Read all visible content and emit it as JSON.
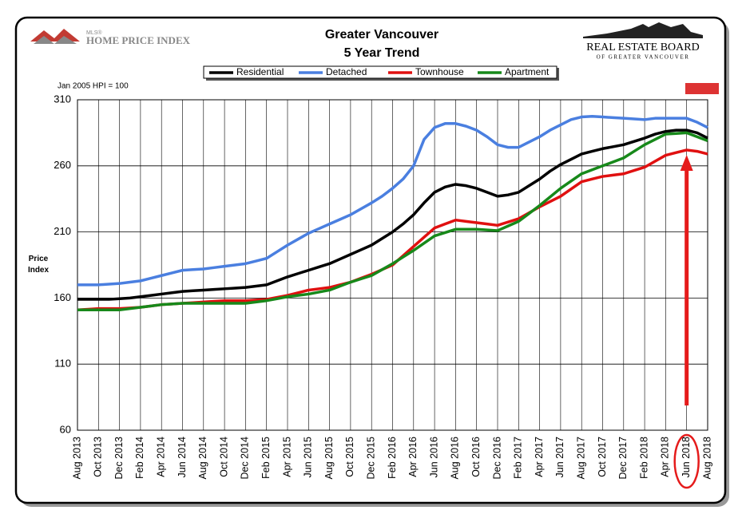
{
  "logos": {
    "mls": "MLS®",
    "hpi": "HOME PRICE INDEX",
    "board": "REAL ESTATE BOARD",
    "board_sub": "OF GREATER VANCOUVER"
  },
  "chart_data": {
    "type": "line",
    "title": "Greater Vancouver",
    "subtitle": "5 Year Trend",
    "note": "Jan 2005 HPI = 100",
    "y_label": "Price Index",
    "categories": [
      "Aug 2013",
      null,
      "Oct 2013",
      null,
      "Dec 2013",
      null,
      "Feb 2014",
      null,
      "Apr 2014",
      null,
      "Jun 2014",
      null,
      "Aug 2014",
      null,
      "Oct 2014",
      null,
      "Dec 2014",
      null,
      "Feb 2015",
      null,
      "Apr 2015",
      null,
      "Jun 2015",
      null,
      "Aug 2015",
      null,
      "Oct 2015",
      null,
      "Dec 2015",
      null,
      "Feb 2016",
      null,
      "Apr 2016",
      null,
      "Jun 2016",
      null,
      "Aug 2016",
      null,
      "Oct 2016",
      null,
      "Dec 2016",
      null,
      "Feb 2017",
      null,
      "Apr 2017",
      null,
      "Jun 2017",
      null,
      "Aug 2017",
      null,
      "Oct 2017",
      null,
      "Dec 2017",
      null,
      "Feb 2018",
      null,
      "Apr 2018",
      null,
      "Jun 2018",
      null,
      "Aug 2018"
    ],
    "series": [
      {
        "name": "Residential",
        "color": "#000000",
        "values": [
          159,
          159,
          159,
          159,
          159.5,
          160,
          161,
          162,
          163,
          164,
          165,
          165.5,
          166,
          166.5,
          167,
          167.5,
          168,
          169,
          170,
          173,
          176,
          178.5,
          181,
          183.5,
          186,
          189.5,
          193,
          196.5,
          200,
          205,
          210,
          216,
          223,
          232,
          240,
          244,
          246,
          245,
          243,
          240,
          237,
          238,
          240,
          245,
          250,
          256,
          261,
          265,
          269,
          271,
          273,
          274.5,
          276,
          278.5,
          281,
          284,
          286,
          287,
          287,
          285,
          281
        ]
      },
      {
        "name": "Detached",
        "color": "#4a7fe0",
        "values": [
          170,
          170,
          170,
          170.5,
          171,
          172,
          173,
          175,
          177,
          179,
          181,
          181.5,
          182,
          183,
          184,
          185,
          186,
          188,
          190,
          195,
          200,
          204.5,
          209,
          212.5,
          216,
          219.5,
          223,
          227.5,
          232,
          237,
          243,
          250,
          260,
          280,
          289,
          292,
          292,
          290,
          287,
          282,
          276,
          274,
          274,
          278,
          282,
          287,
          291,
          295,
          297,
          297.5,
          297,
          296.5,
          296,
          295.5,
          295,
          296,
          296,
          296,
          296,
          293,
          289
        ]
      },
      {
        "name": "Townhouse",
        "color": "#e01010",
        "values": [
          151,
          151.5,
          152,
          152,
          152,
          152.5,
          153,
          154,
          155,
          155.5,
          156,
          156.5,
          157,
          157.5,
          158,
          158,
          158,
          158.5,
          159,
          160.5,
          162,
          164,
          166,
          167,
          168,
          170,
          172,
          175,
          178,
          181.5,
          185,
          192,
          199,
          206,
          213,
          216,
          219,
          218,
          217,
          216,
          215,
          217.5,
          220,
          224.5,
          229,
          233,
          237,
          242.5,
          248,
          250,
          252,
          253,
          254,
          256.5,
          259,
          263.5,
          268,
          270,
          272,
          271,
          269
        ]
      },
      {
        "name": "Apartment",
        "color": "#17891a",
        "values": [
          151,
          151,
          151,
          151,
          151,
          152,
          153,
          154,
          155,
          155.5,
          156,
          156,
          156,
          156,
          156,
          156,
          156,
          157,
          158,
          159.5,
          161,
          162,
          163,
          164.5,
          166,
          169,
          172,
          174.5,
          177,
          181.5,
          186,
          191,
          196,
          201.5,
          207,
          209.5,
          212,
          212,
          212,
          211.5,
          211,
          214.5,
          218,
          224,
          230,
          236.5,
          243,
          248.5,
          254,
          257,
          260,
          263,
          266,
          271,
          276,
          280,
          284,
          284.5,
          285,
          282,
          279
        ]
      }
    ],
    "ylim": [
      60,
      310
    ],
    "yticks": [
      60,
      110,
      160,
      210,
      260,
      310
    ],
    "grid": true
  }
}
